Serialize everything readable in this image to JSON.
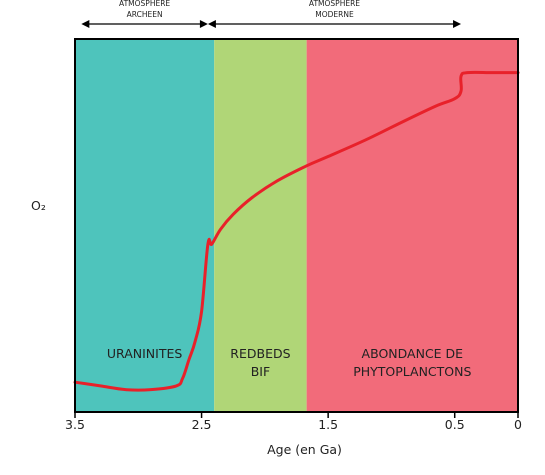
{
  "chart_data": {
    "type": "area",
    "title": "",
    "xlabel": "Age (en Ga)",
    "ylabel": "O₂",
    "xlim": [
      3.5,
      0
    ],
    "x_ticks": [
      "3.5",
      "2.5",
      "1.5",
      "0.5",
      "0"
    ],
    "x_tick_values": [
      3.5,
      2.5,
      1.5,
      0.5,
      0
    ],
    "y_scale": "relative (unlabeled)",
    "ylim": [
      0,
      100
    ],
    "grid": false,
    "legend": "none",
    "periods": [
      {
        "name": "atmosphère archéenne",
        "label_lines": [
          "ATMOSPHERE",
          "ARCHEEN"
        ],
        "from": 3.45,
        "to": 2.45
      },
      {
        "name": "atmosphère moderne",
        "label_lines": [
          "ATMOSPHERE",
          "MODERNE"
        ],
        "from": 2.45,
        "to": 0.45
      }
    ],
    "regions": [
      {
        "name": "uraninites",
        "label_lines": [
          "URANINITES"
        ],
        "from": 3.5,
        "to": 2.4,
        "color": "#4ec4bc"
      },
      {
        "name": "redbeds-bif",
        "label_lines": [
          "REDBEDS",
          "BIF"
        ],
        "from": 2.4,
        "to": 1.67,
        "color": "#b0d677"
      },
      {
        "name": "phytoplancton",
        "label_lines": [
          "ABONDANCE DE",
          "PHYTOPLANCTONS"
        ],
        "from": 1.67,
        "to": 0,
        "color": "#f26b7a"
      }
    ],
    "series": [
      {
        "name": "",
        "color": "#e8212a",
        "x": [
          3.5,
          3.3,
          3.1,
          2.9,
          2.7,
          2.65,
          2.6,
          2.55,
          2.5,
          2.45,
          2.42,
          2.35,
          2.25,
          2.1,
          1.9,
          1.67,
          1.5,
          1.2,
          0.9,
          0.65,
          0.5,
          0.45,
          0.45,
          0.4,
          0.2,
          0
        ],
        "y": [
          8,
          7,
          6,
          6,
          7,
          9,
          14,
          19,
          27,
          45,
          45,
          49,
          53,
          57.5,
          62,
          66,
          68.5,
          73,
          78,
          82,
          84,
          86,
          90,
          91,
          91,
          91
        ]
      }
    ],
    "colors": {
      "line": "#e8212a",
      "frame": "#000000",
      "uraninites": "#4ec4bc",
      "redbeds": "#b0d677",
      "phytoplancton": "#f26b7a"
    }
  }
}
